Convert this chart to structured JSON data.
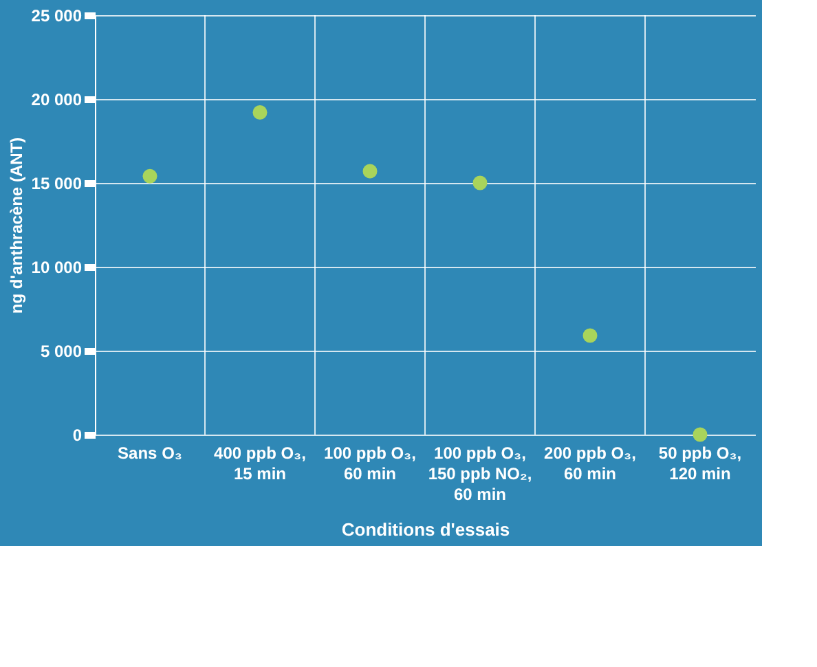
{
  "chart_data": {
    "type": "scatter",
    "categories": [
      "Sans O₃",
      "400 ppb O₃, 15 min",
      "100 ppb O₃, 60 min",
      "100 ppb O₃, 150 ppb NO₂, 60 min",
      "200 ppb O₃, 60 min",
      "50 ppb O₃, 120 min"
    ],
    "values": [
      15400,
      19200,
      15700,
      15000,
      5900,
      0
    ],
    "color": "#a9d45b",
    "xlabel": "Conditions d'essais",
    "ylabel": "ng d'anthracène (ANT)",
    "ylim": [
      0,
      25000
    ],
    "yticks": [
      0,
      {
        "value": 5000,
        "label": "5 000"
      },
      {
        "value": 10000,
        "label": "10 000"
      },
      {
        "value": 15000,
        "label": "15 000"
      },
      {
        "value": 20000,
        "label": "20 000"
      },
      {
        "value": 25000,
        "label": "25 000"
      }
    ],
    "grid": true,
    "marker": "circle"
  }
}
